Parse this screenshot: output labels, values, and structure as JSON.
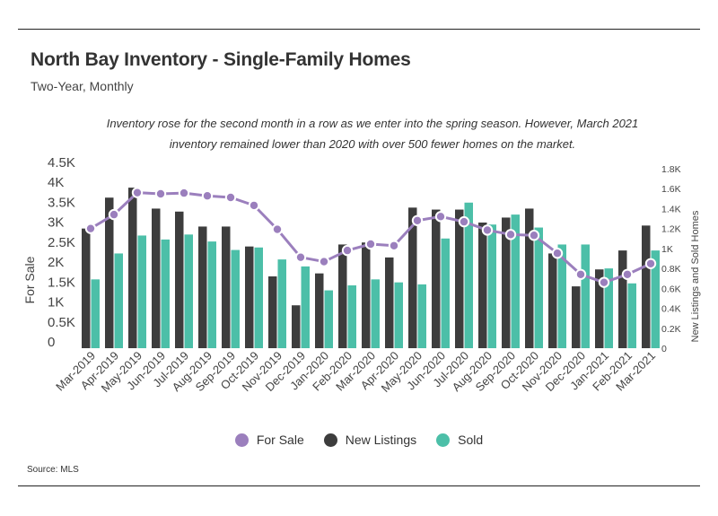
{
  "chart_data": {
    "type": "bar",
    "title": "North Bay Inventory - Single-Family Homes",
    "subtitle": "Two-Year, Monthly",
    "annotation_line1": "Inventory rose for the second month in a row as we enter into the spring season. However, March 2021",
    "annotation_line2": "inventory remained lower than 2020 with over 500 fewer homes on the market.",
    "ylabel_left": "For Sale",
    "ylabel_right": "New Listings and Sold Homes",
    "ylim_left": [
      0,
      4500
    ],
    "ylim_right": [
      0,
      1800
    ],
    "yticks_left": [
      "0",
      "0.5K",
      "1K",
      "1.5K",
      "2K",
      "2.5K",
      "3K",
      "3.5K",
      "4K",
      "4.5K"
    ],
    "yticks_right": [
      "0",
      "0.2K",
      "0.4K",
      "0.6K",
      "0.8K",
      "1K",
      "1.2K",
      "1.4K",
      "1.6K",
      "1.8K"
    ],
    "categories": [
      "Mar-2019",
      "Apr-2019",
      "May-2019",
      "Jun-2019",
      "Jul-2019",
      "Aug-2019",
      "Sep-2019",
      "Oct-2019",
      "Nov-2019",
      "Dec-2019",
      "Jan-2020",
      "Feb-2020",
      "Mar-2020",
      "Apr-2020",
      "May-2020",
      "Jun-2020",
      "Jul-2020",
      "Aug-2020",
      "Sep-2020",
      "Oct-2020",
      "Nov-2020",
      "Dec-2020",
      "Jan-2021",
      "Feb-2021",
      "Mar-2021"
    ],
    "series": [
      {
        "name": "For Sale",
        "axis": "left",
        "kind": "line",
        "color": "#9b7fbd",
        "values": [
          3000,
          3350,
          3900,
          3870,
          3890,
          3820,
          3780,
          3580,
          2980,
          2280,
          2170,
          2450,
          2610,
          2570,
          3200,
          3300,
          3170,
          2960,
          2850,
          2830,
          2380,
          1850,
          1650,
          1850,
          2120
        ]
      },
      {
        "name": "New Listings",
        "axis": "right",
        "kind": "bar",
        "color": "#3d3d3d",
        "values": [
          1200,
          1510,
          1610,
          1400,
          1370,
          1220,
          1220,
          1020,
          720,
          430,
          750,
          1040,
          1060,
          910,
          1410,
          1390,
          1390,
          1260,
          1310,
          1400,
          950,
          620,
          790,
          980,
          1230
        ]
      },
      {
        "name": "Sold",
        "axis": "right",
        "kind": "bar",
        "color": "#4cbfa8",
        "values": [
          690,
          950,
          1130,
          1090,
          1140,
          1070,
          985,
          1010,
          890,
          820,
          580,
          630,
          690,
          660,
          640,
          1100,
          1460,
          1240,
          1340,
          1210,
          1040,
          1040,
          800,
          650,
          980
        ]
      }
    ]
  },
  "legend": {
    "for_sale": "For Sale",
    "new_listings": "New Listings",
    "sold": "Sold"
  },
  "source": "Source:  MLS",
  "colors": {
    "for_sale": "#9b7fbd",
    "new_listings": "#3d3d3d",
    "sold": "#4cbfa8"
  }
}
